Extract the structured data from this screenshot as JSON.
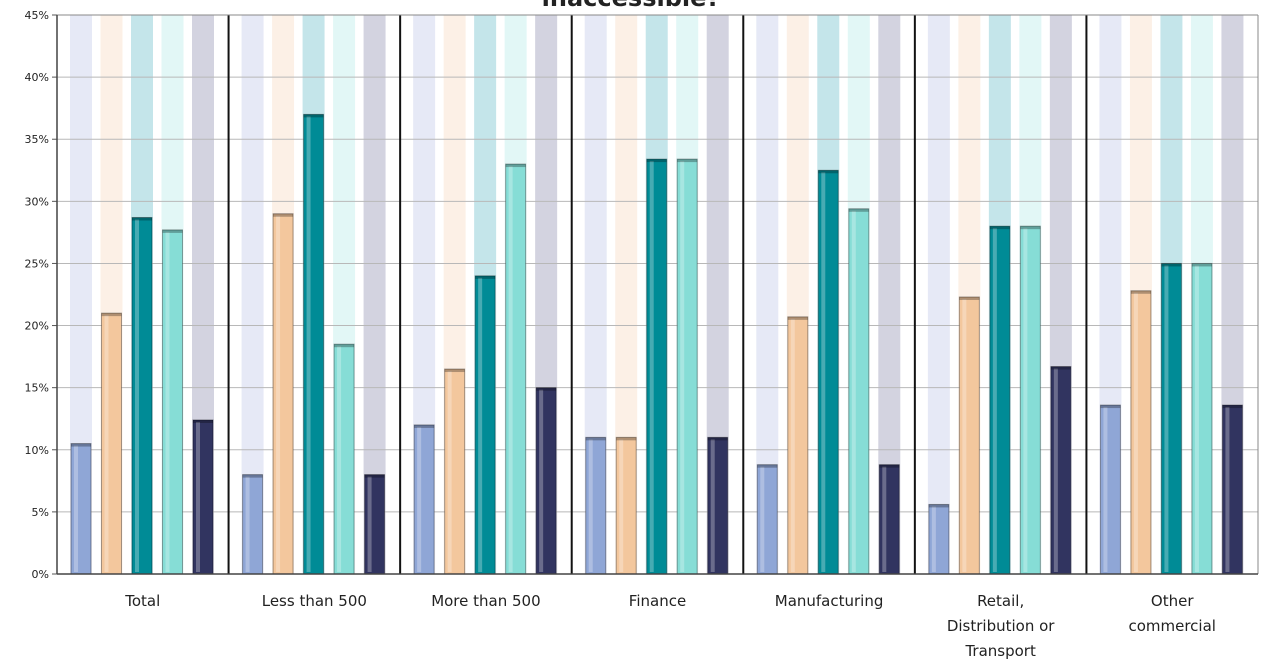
{
  "chart_data": {
    "type": "bar",
    "title": "inaccessible?",
    "categories": [
      "Total",
      "Less than 500",
      "More than 500",
      "Finance",
      "Manufacturing",
      "Retail, Distribution or Transport",
      "Other commercial"
    ],
    "category_label_lines": [
      [
        "Total"
      ],
      [
        "Less than 500"
      ],
      [
        "More than 500"
      ],
      [
        "Finance"
      ],
      [
        "Manufacturing"
      ],
      [
        "Retail,",
        "Distribution or",
        "Transport"
      ],
      [
        "Other",
        "commercial"
      ]
    ],
    "series": [
      {
        "values": [
          10.5,
          8,
          12,
          11,
          8.8,
          5.6,
          13.6
        ]
      },
      {
        "values": [
          21,
          29,
          16.5,
          11,
          20.7,
          22.3,
          22.8
        ]
      },
      {
        "values": [
          28.7,
          37,
          24,
          33.4,
          32.5,
          28,
          25
        ]
      },
      {
        "values": [
          27.7,
          18.5,
          33,
          33.4,
          29.4,
          28,
          25
        ]
      },
      {
        "values": [
          12.4,
          8,
          15,
          11,
          8.8,
          16.7,
          13.6
        ]
      }
    ],
    "colors": [
      "#8fa6d6",
      "#f3c79d",
      "#008b96",
      "#86ddd6",
      "#313460"
    ],
    "background_colors": [
      "#e6e9f6",
      "#fcf0e6",
      "#c4e5ea",
      "#e2f7f6",
      "#d3d3e0"
    ],
    "yticks": [
      "0%",
      "5%",
      "10%",
      "15%",
      "20%",
      "25%",
      "30%",
      "35%",
      "40%",
      "45%"
    ],
    "ylim": [
      0,
      45
    ],
    "grid": true,
    "legend": "none"
  }
}
